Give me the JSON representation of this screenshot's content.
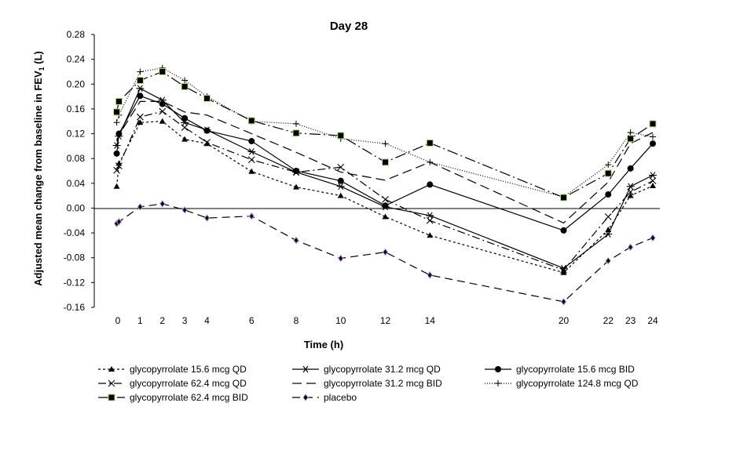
{
  "chart_data": {
    "type": "line",
    "title": "Day 28",
    "xlabel": "Time (h)",
    "ylabel": "Adjusted mean change from baseline in FEV1 (L)",
    "ylabel_parts": [
      "Adjusted mean change from baseline in FEV",
      "1",
      " (L)"
    ],
    "ylim": [
      -0.16,
      0.28
    ],
    "yticks": [
      "0.28",
      "0.24",
      "0.20",
      "0.16",
      "0.12",
      "0.08",
      "0.04",
      "0.00",
      "-0.04",
      "-0.08",
      "-0.12",
      "-0.16"
    ],
    "xticks": [
      "0",
      "1",
      "2",
      "3",
      "4",
      "6",
      "8",
      "10",
      "12",
      "14",
      "20",
      "22",
      "23",
      "24"
    ],
    "grid": false,
    "legend_position": "bottom",
    "series": [
      {
        "name": "glycopyrrolate 15.6 mcg QD",
        "marker": "triangle",
        "dash": "3,3",
        "color": "#000000",
        "x": [
          -0.05,
          0.05,
          1,
          2,
          3,
          4,
          6,
          8,
          10,
          12,
          14,
          20,
          22,
          23,
          24
        ],
        "y": [
          0.035,
          0.072,
          0.138,
          0.14,
          0.111,
          0.104,
          0.059,
          0.034,
          0.02,
          -0.014,
          -0.044,
          -0.104,
          -0.035,
          0.02,
          0.036
        ]
      },
      {
        "name": "glycopyrrolate 31.2 mcg QD",
        "marker": "asterisk",
        "dash": "",
        "color": "#000000",
        "x": [
          -0.05,
          0.05,
          1,
          2,
          3,
          4,
          6,
          8,
          10,
          12,
          14,
          20,
          22,
          23,
          24
        ],
        "y": [
          0.101,
          0.116,
          0.193,
          0.174,
          0.138,
          0.126,
          0.091,
          0.058,
          0.035,
          0.002,
          -0.012,
          -0.097,
          -0.042,
          0.035,
          0.053
        ]
      },
      {
        "name": "glycopyrrolate 15.6 mcg BID",
        "marker": "circle",
        "dash": "",
        "color": "#000000",
        "x": [
          -0.05,
          0.05,
          1,
          2,
          3,
          4,
          6,
          8,
          10,
          12,
          14,
          20,
          22,
          23,
          24
        ],
        "y": [
          0.088,
          0.12,
          0.181,
          0.168,
          0.145,
          0.125,
          0.108,
          0.06,
          0.044,
          0.004,
          0.038,
          -0.036,
          0.022,
          0.064,
          0.104
        ]
      },
      {
        "name": "glycopyrrolate 62.4 mcg QD",
        "marker": "x",
        "dash": "10,4,2,4",
        "color": "#000000",
        "x": [
          -0.05,
          0.05,
          1,
          2,
          3,
          4,
          6,
          8,
          10,
          12,
          14,
          20,
          22,
          23,
          24
        ],
        "y": [
          0.061,
          0.068,
          0.147,
          0.156,
          0.13,
          0.106,
          0.078,
          0.058,
          0.066,
          0.014,
          -0.02,
          -0.1,
          -0.014,
          0.026,
          0.044
        ]
      },
      {
        "name": "glycopyrrolate 31.2 mcg BID",
        "marker": "none",
        "dash": "12,6",
        "color": "#000000",
        "x": [
          -0.05,
          0.05,
          1,
          2,
          3,
          4,
          6,
          8,
          10,
          12,
          14,
          20,
          22,
          23,
          24
        ],
        "y": [
          0.108,
          0.118,
          0.172,
          0.172,
          0.155,
          0.15,
          0.12,
          0.09,
          0.058,
          0.045,
          0.074,
          -0.024,
          0.042,
          0.104,
          0.122
        ]
      },
      {
        "name": "glycopyrrolate 124.8 mcg QD",
        "marker": "plus",
        "dash": "1,2",
        "color": "#000000",
        "x": [
          -0.05,
          0.05,
          1,
          2,
          3,
          4,
          6,
          8,
          10,
          12,
          14,
          20,
          22,
          23,
          24
        ],
        "y": [
          0.138,
          0.15,
          0.22,
          0.226,
          0.206,
          0.18,
          0.14,
          0.136,
          0.112,
          0.104,
          0.074,
          0.018,
          0.07,
          0.122,
          0.115
        ]
      },
      {
        "name": "glycopyrrolate 62.4 mcg BID",
        "marker": "square",
        "dash": "14,4,2,4",
        "color": "#000000",
        "x": [
          -0.05,
          0.05,
          1,
          2,
          3,
          4,
          6,
          8,
          10,
          12,
          14,
          20,
          22,
          23,
          24
        ],
        "y": [
          0.155,
          0.172,
          0.206,
          0.22,
          0.196,
          0.177,
          0.141,
          0.121,
          0.117,
          0.074,
          0.105,
          0.017,
          0.056,
          0.112,
          0.136
        ]
      },
      {
        "name": "placebo",
        "marker": "diamond",
        "dash": "10,6",
        "color": "#000000",
        "x": [
          -0.05,
          0.05,
          1,
          2,
          3,
          4,
          6,
          8,
          10,
          12,
          14,
          20,
          22,
          23,
          24
        ],
        "y": [
          -0.025,
          -0.022,
          0.002,
          0.007,
          -0.003,
          -0.016,
          -0.013,
          -0.052,
          -0.081,
          -0.071,
          -0.108,
          -0.151,
          -0.085,
          -0.063,
          -0.048
        ]
      }
    ]
  }
}
